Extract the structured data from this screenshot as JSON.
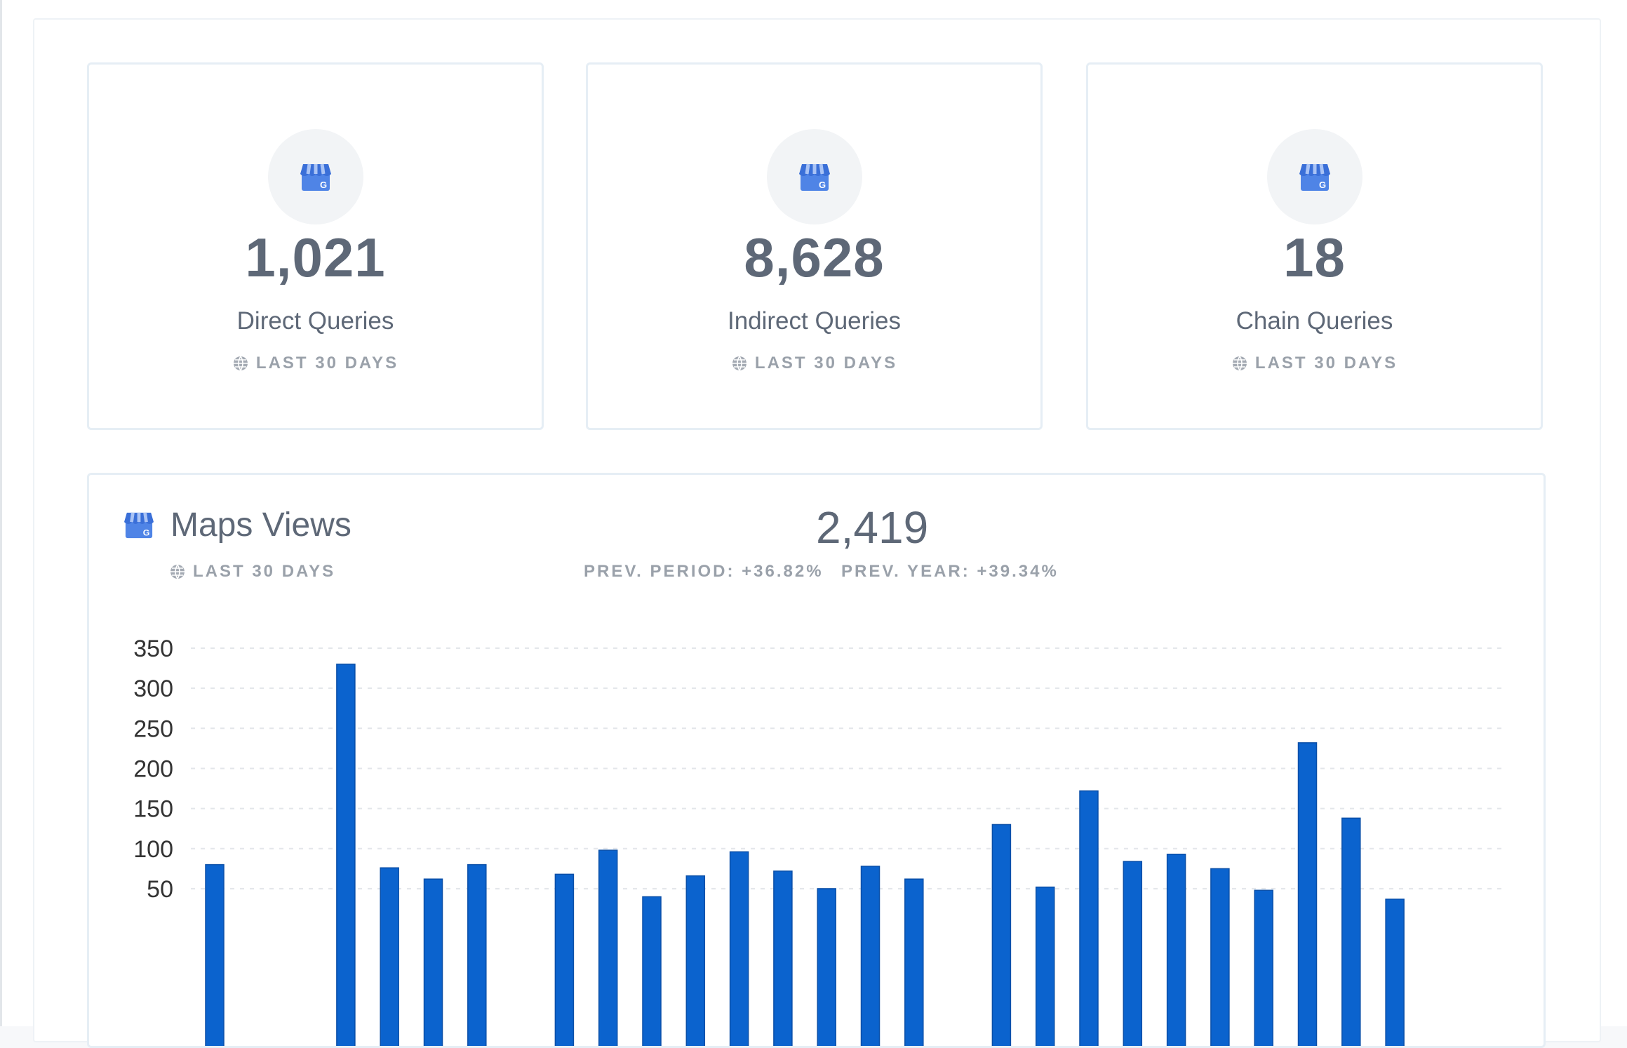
{
  "cards": [
    {
      "value": "1,021",
      "label": "Direct Queries",
      "period": "LAST 30 DAYS"
    },
    {
      "value": "8,628",
      "label": "Indirect Queries",
      "period": "LAST 30 DAYS"
    },
    {
      "value": "18",
      "label": "Chain Queries",
      "period": "LAST 30 DAYS"
    }
  ],
  "chart_header": {
    "title": "Maps Views",
    "period": "LAST 30 DAYS",
    "total": "2,419",
    "prev_period": "PREV. PERIOD: +36.82%",
    "prev_year": "PREV. YEAR: +39.34%"
  },
  "icons": {
    "store": "google-business-store-icon",
    "globe": "globe-icon"
  },
  "colors": {
    "bar": "#0b63ce",
    "text": "#5e6877",
    "muted": "#9aa1aa"
  },
  "chart_data": {
    "type": "bar",
    "title": "Maps Views",
    "y_ticks": [
      50,
      100,
      150,
      200,
      250,
      300,
      350
    ],
    "ylim": [
      0,
      350
    ],
    "grid": true,
    "values": [
      80,
      0,
      0,
      330,
      76,
      62,
      80,
      0,
      68,
      98,
      40,
      66,
      96,
      72,
      50,
      78,
      62,
      0,
      130,
      52,
      172,
      84,
      93,
      75,
      48,
      232,
      138,
      37
    ]
  }
}
